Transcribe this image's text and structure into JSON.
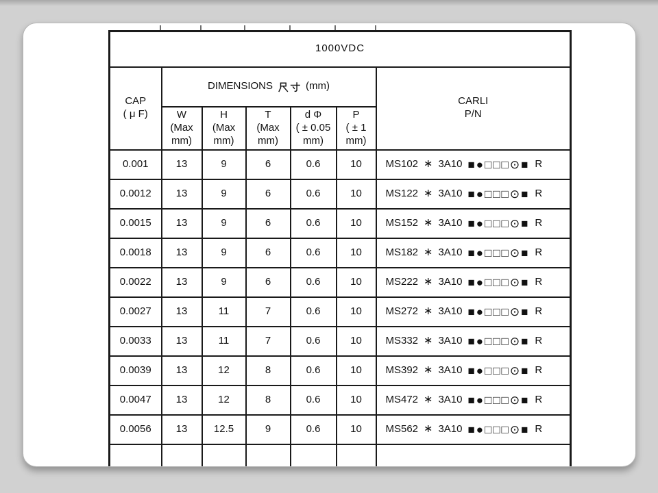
{
  "colors": {
    "page_background": "#d1d1d1",
    "card_background": "#ffffff",
    "table_line": "#1a1a1a",
    "text": "#111111"
  },
  "table": {
    "title": "1000VDC",
    "header": {
      "cap": "CAP\n( μ F)",
      "dimensions_en": "DIMENSIONS",
      "dimensions_cjk": "尺寸",
      "dimensions_unit": "(mm)",
      "w": "W\n(Max\nmm)",
      "h": "H\n(Max\nmm)",
      "t": "T\n(Max\nmm)",
      "d": "d Φ\n( ± 0.05\nmm)",
      "p": "P\n( ± 1\nmm)",
      "carli": "CARLI\nP/N"
    },
    "pn_star": "∗",
    "pn_series": "3A10",
    "pn_symbols": "■●□□□⊙■",
    "pn_suffix": "R",
    "rows": [
      {
        "cap": "0.001",
        "w": "13",
        "h": "9",
        "t": "6",
        "d": "0.6",
        "p": "10",
        "pn_code": "MS102"
      },
      {
        "cap": "0.0012",
        "w": "13",
        "h": "9",
        "t": "6",
        "d": "0.6",
        "p": "10",
        "pn_code": "MS122"
      },
      {
        "cap": "0.0015",
        "w": "13",
        "h": "9",
        "t": "6",
        "d": "0.6",
        "p": "10",
        "pn_code": "MS152"
      },
      {
        "cap": "0.0018",
        "w": "13",
        "h": "9",
        "t": "6",
        "d": "0.6",
        "p": "10",
        "pn_code": "MS182"
      },
      {
        "cap": "0.0022",
        "w": "13",
        "h": "9",
        "t": "6",
        "d": "0.6",
        "p": "10",
        "pn_code": "MS222"
      },
      {
        "cap": "0.0027",
        "w": "13",
        "h": "11",
        "t": "7",
        "d": "0.6",
        "p": "10",
        "pn_code": "MS272"
      },
      {
        "cap": "0.0033",
        "w": "13",
        "h": "11",
        "t": "7",
        "d": "0.6",
        "p": "10",
        "pn_code": "MS332"
      },
      {
        "cap": "0.0039",
        "w": "13",
        "h": "12",
        "t": "8",
        "d": "0.6",
        "p": "10",
        "pn_code": "MS392"
      },
      {
        "cap": "0.0047",
        "w": "13",
        "h": "12",
        "t": "8",
        "d": "0.6",
        "p": "10",
        "pn_code": "MS472"
      },
      {
        "cap": "0.0056",
        "w": "13",
        "h": "12.5",
        "t": "9",
        "d": "0.6",
        "p": "10",
        "pn_code": "MS562"
      }
    ]
  }
}
